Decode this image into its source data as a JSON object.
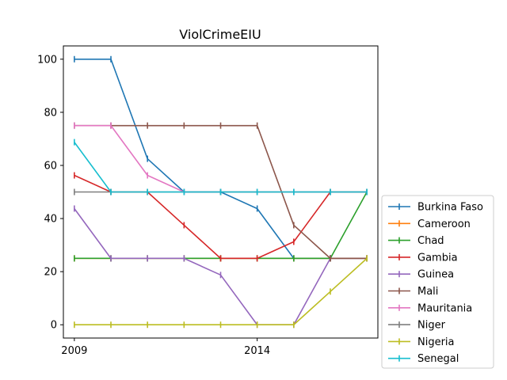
{
  "chart_data": {
    "type": "line",
    "title": "ViolCrimeEIU",
    "xlabel": "",
    "ylabel": "",
    "x": [
      2009,
      2010,
      2011,
      2012,
      2013,
      2014,
      2015,
      2016,
      2017
    ],
    "x_ticks": [
      2009,
      2014
    ],
    "x_tick_labels": [
      "2009",
      "2014"
    ],
    "xlim": [
      2008.7,
      2017.3
    ],
    "y_ticks": [
      0,
      20,
      40,
      60,
      80,
      100
    ],
    "y_tick_labels": [
      "0",
      "20",
      "40",
      "60",
      "80",
      "100"
    ],
    "ylim": [
      -5,
      105
    ],
    "grid": false,
    "legend_position": "right, outside plot area, bottom",
    "marker": "vertical tick",
    "series": [
      {
        "name": "Burkina Faso",
        "color": "#1f77b4",
        "values": [
          100,
          100,
          62.5,
          50,
          50,
          43.75,
          25,
          25,
          25
        ]
      },
      {
        "name": "Cameroon",
        "color": "#ff7f0e",
        "values": [
          25,
          25,
          25,
          25,
          25,
          25,
          25,
          25,
          25
        ]
      },
      {
        "name": "Chad",
        "color": "#2ca02c",
        "values": [
          25,
          25,
          25,
          25,
          25,
          25,
          25,
          25,
          50
        ]
      },
      {
        "name": "Gambia",
        "color": "#d62728",
        "values": [
          56.25,
          50,
          50,
          37.5,
          25,
          25,
          31.25,
          50,
          50
        ]
      },
      {
        "name": "Guinea",
        "color": "#9467bd",
        "values": [
          43.75,
          25,
          25,
          25,
          18.75,
          0,
          0,
          25,
          25
        ]
      },
      {
        "name": "Mali",
        "color": "#8c564b",
        "values": [
          75,
          75,
          75,
          75,
          75,
          75,
          37.5,
          25,
          25
        ]
      },
      {
        "name": "Mauritania",
        "color": "#e377c2",
        "values": [
          75,
          75,
          56.25,
          50,
          50,
          50,
          50,
          50,
          50
        ]
      },
      {
        "name": "Niger",
        "color": "#7f7f7f",
        "values": [
          50,
          50,
          50,
          50,
          50,
          50,
          50,
          50,
          50
        ]
      },
      {
        "name": "Nigeria",
        "color": "#bcbd22",
        "values": [
          0,
          0,
          0,
          0,
          0,
          0,
          0,
          12.5,
          25
        ]
      },
      {
        "name": "Senegal",
        "color": "#17becf",
        "values": [
          68.75,
          50,
          50,
          50,
          50,
          50,
          50,
          50,
          50
        ]
      }
    ]
  }
}
